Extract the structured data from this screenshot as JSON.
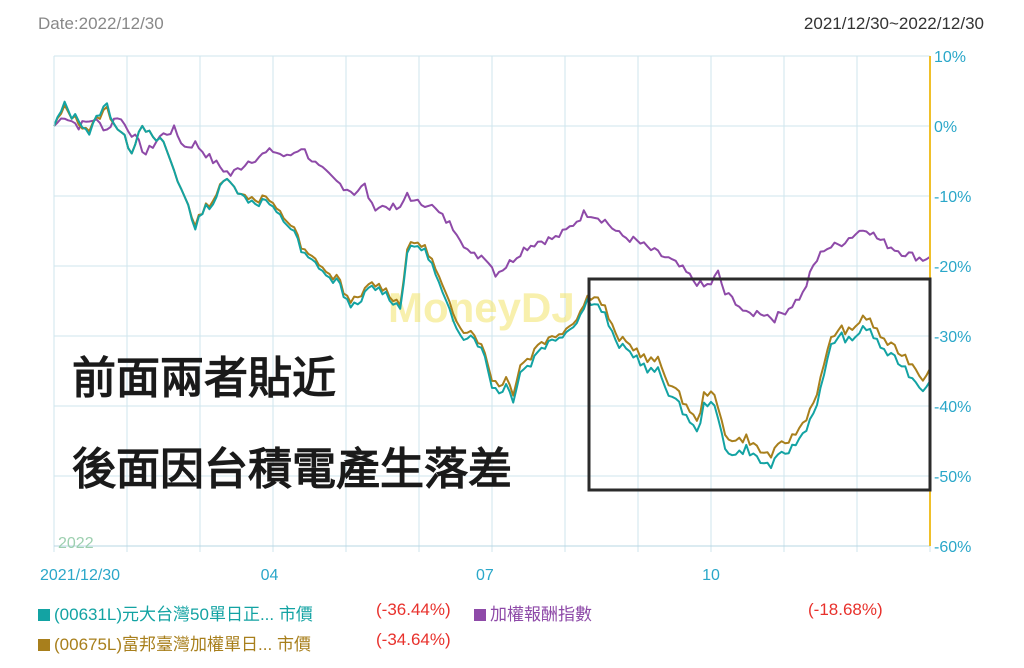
{
  "header": {
    "date_label": "Date:2022/12/30",
    "range_label": "2021/12/30~2022/12/30"
  },
  "watermark": "MoneyDJ",
  "annotations": [
    "前面兩者貼近",
    "後面因台積電產生落差"
  ],
  "colors": {
    "series_0631": "#13a3a3",
    "series_0675": "#a87f1c",
    "series_index": "#8e4aa8",
    "axis_right": "#f0c02a",
    "grid": "#cfe5ee",
    "negative": "#e8312c"
  },
  "legend": [
    {
      "label": "(00631L)元大台灣50單日正... 市價",
      "pct": "(-36.44%)",
      "pct_color": "#e8312c",
      "text_color": "#13a3a3",
      "swatch": "#13a3a3"
    },
    {
      "label": "加權報酬指數",
      "pct": "(-18.68%)",
      "pct_color": "#e8312c",
      "text_color": "#8e4aa8",
      "swatch": "#8e4aa8"
    },
    {
      "label": "(00675L)富邦臺灣加權單日... 市價",
      "pct": "(-34.64%)",
      "pct_color": "#e8312c",
      "text_color": "#a87f1c",
      "swatch": "#a87f1c"
    }
  ],
  "chart_data": {
    "type": "line",
    "x_ticks": [
      "2021/12/30",
      "04",
      "07",
      "10"
    ],
    "x_ticks_index": [
      0,
      61,
      122,
      186
    ],
    "year_label": "2022",
    "y_ticks": [
      "10%",
      "0%",
      "-10%",
      "-20%",
      "-30%",
      "-40%",
      "-50%",
      "-60%"
    ],
    "ylim": [
      -60,
      10
    ],
    "n_points": 249,
    "highlight_box": {
      "from_index": 152,
      "to_index": 248
    },
    "series": [
      {
        "name": "加權報酬指數",
        "keypoints": [
          [
            0,
            0
          ],
          [
            3,
            1.5
          ],
          [
            7,
            0
          ],
          [
            11,
            1
          ],
          [
            15,
            -0.5
          ],
          [
            18,
            1.5
          ],
          [
            22,
            -1
          ],
          [
            26,
            -4
          ],
          [
            30,
            -1.5
          ],
          [
            34,
            -0.5
          ],
          [
            37,
            -3
          ],
          [
            40,
            -2.5
          ],
          [
            45,
            -5
          ],
          [
            50,
            -7
          ],
          [
            55,
            -5
          ],
          [
            62,
            -3.5
          ],
          [
            66,
            -4.5
          ],
          [
            70,
            -3
          ],
          [
            75,
            -6
          ],
          [
            80,
            -8
          ],
          [
            85,
            -9.5
          ],
          [
            88,
            -8.5
          ],
          [
            90,
            -11.5
          ],
          [
            95,
            -11.5
          ],
          [
            98,
            -12
          ],
          [
            100,
            -9.5
          ],
          [
            102,
            -11
          ],
          [
            106,
            -11
          ],
          [
            110,
            -13
          ],
          [
            114,
            -15
          ],
          [
            118,
            -18.5
          ],
          [
            122,
            -18.5
          ],
          [
            125,
            -21
          ],
          [
            128,
            -20
          ],
          [
            133,
            -17.5
          ],
          [
            137,
            -16.5
          ],
          [
            142,
            -16
          ],
          [
            145,
            -15
          ],
          [
            150,
            -12.5
          ],
          [
            152,
            -12.5
          ],
          [
            156,
            -13.5
          ],
          [
            160,
            -15.5
          ],
          [
            165,
            -16.5
          ],
          [
            170,
            -18
          ],
          [
            174,
            -19
          ],
          [
            178,
            -20.5
          ],
          [
            181,
            -22
          ],
          [
            184,
            -23
          ],
          [
            186,
            -22.5
          ],
          [
            188,
            -21
          ],
          [
            190,
            -24
          ],
          [
            193,
            -25
          ],
          [
            196,
            -27
          ],
          [
            200,
            -26.5
          ],
          [
            204,
            -27.5
          ],
          [
            208,
            -26
          ],
          [
            212,
            -24
          ],
          [
            215,
            -20
          ],
          [
            218,
            -17.5
          ],
          [
            222,
            -17
          ],
          [
            225,
            -16
          ],
          [
            228,
            -15
          ],
          [
            230,
            -14.5
          ],
          [
            233,
            -16
          ],
          [
            236,
            -17
          ],
          [
            240,
            -18
          ],
          [
            243,
            -18.5
          ],
          [
            246,
            -19
          ],
          [
            248,
            -18.68
          ]
        ]
      },
      {
        "name": "(00631L)元大台灣50單日正... 市價",
        "keypoints": [
          [
            0,
            0
          ],
          [
            3,
            3
          ],
          [
            5,
            1.5
          ],
          [
            7,
            1
          ],
          [
            10,
            -1
          ],
          [
            13,
            2
          ],
          [
            15,
            3
          ],
          [
            17,
            0.5
          ],
          [
            19,
            -1
          ],
          [
            22,
            -3.5
          ],
          [
            25,
            0.5
          ],
          [
            28,
            -2
          ],
          [
            30,
            -2
          ],
          [
            32,
            -3.5
          ],
          [
            35,
            -8
          ],
          [
            38,
            -11
          ],
          [
            40,
            -15
          ],
          [
            42,
            -12
          ],
          [
            45,
            -11
          ],
          [
            48,
            -8
          ],
          [
            50,
            -7.5
          ],
          [
            53,
            -10
          ],
          [
            55,
            -10.5
          ],
          [
            58,
            -11
          ],
          [
            60,
            -10.5
          ],
          [
            62,
            -12
          ],
          [
            64,
            -13
          ],
          [
            68,
            -15
          ],
          [
            70,
            -18
          ],
          [
            72,
            -19
          ],
          [
            75,
            -20
          ],
          [
            78,
            -22
          ],
          [
            80,
            -22
          ],
          [
            83,
            -25
          ],
          [
            86,
            -26
          ],
          [
            88,
            -24
          ],
          [
            90,
            -23
          ],
          [
            93,
            -23.5
          ],
          [
            96,
            -25
          ],
          [
            98,
            -26
          ],
          [
            100,
            -18
          ],
          [
            103,
            -17
          ],
          [
            106,
            -18.5
          ],
          [
            110,
            -24
          ],
          [
            113,
            -28
          ],
          [
            116,
            -30
          ],
          [
            119,
            -30
          ],
          [
            122,
            -33
          ],
          [
            124,
            -37
          ],
          [
            126,
            -38
          ],
          [
            128,
            -37
          ],
          [
            130,
            -39
          ],
          [
            132,
            -35
          ],
          [
            135,
            -34
          ],
          [
            137,
            -32
          ],
          [
            140,
            -31
          ],
          [
            143,
            -30
          ],
          [
            146,
            -29
          ],
          [
            149,
            -27
          ],
          [
            151,
            -25
          ],
          [
            153,
            -25
          ],
          [
            156,
            -27
          ],
          [
            159,
            -31
          ],
          [
            162,
            -32
          ],
          [
            165,
            -33
          ],
          [
            168,
            -35
          ],
          [
            171,
            -35
          ],
          [
            174,
            -38
          ],
          [
            177,
            -40
          ],
          [
            180,
            -42
          ],
          [
            182,
            -44
          ],
          [
            184,
            -40
          ],
          [
            186,
            -39
          ],
          [
            188,
            -42
          ],
          [
            190,
            -46
          ],
          [
            193,
            -47
          ],
          [
            196,
            -46
          ],
          [
            200,
            -48
          ],
          [
            203,
            -48.5
          ],
          [
            206,
            -47
          ],
          [
            209,
            -46
          ],
          [
            212,
            -44
          ],
          [
            215,
            -41
          ],
          [
            218,
            -36
          ],
          [
            220,
            -31
          ],
          [
            223,
            -30
          ],
          [
            226,
            -31
          ],
          [
            229,
            -28.5
          ],
          [
            232,
            -30
          ],
          [
            234,
            -31.5
          ],
          [
            237,
            -33
          ],
          [
            240,
            -34
          ],
          [
            243,
            -36
          ],
          [
            246,
            -37.5
          ],
          [
            248,
            -36.44
          ]
        ]
      },
      {
        "name": "(00675L)富邦臺灣加權單日... 市價",
        "keypoints": [
          [
            0,
            0
          ],
          [
            3,
            2.5
          ],
          [
            5,
            1.5
          ],
          [
            7,
            0.5
          ],
          [
            10,
            -0.5
          ],
          [
            13,
            1.5
          ],
          [
            15,
            2.5
          ],
          [
            17,
            0.5
          ],
          [
            19,
            -1
          ],
          [
            22,
            -3.5
          ],
          [
            25,
            0.5
          ],
          [
            28,
            -2
          ],
          [
            30,
            -2
          ],
          [
            32,
            -3.5
          ],
          [
            35,
            -8
          ],
          [
            38,
            -11
          ],
          [
            40,
            -14.5
          ],
          [
            42,
            -12
          ],
          [
            45,
            -10.5
          ],
          [
            48,
            -8
          ],
          [
            50,
            -7.5
          ],
          [
            53,
            -10
          ],
          [
            55,
            -10
          ],
          [
            58,
            -10.5
          ],
          [
            60,
            -10
          ],
          [
            62,
            -11.5
          ],
          [
            64,
            -12.5
          ],
          [
            68,
            -14.5
          ],
          [
            70,
            -17.5
          ],
          [
            72,
            -18.5
          ],
          [
            75,
            -19.5
          ],
          [
            78,
            -21.5
          ],
          [
            80,
            -21.5
          ],
          [
            83,
            -24.5
          ],
          [
            86,
            -25
          ],
          [
            88,
            -23.5
          ],
          [
            90,
            -22.5
          ],
          [
            93,
            -23
          ],
          [
            96,
            -24.5
          ],
          [
            98,
            -25.5
          ],
          [
            100,
            -17.5
          ],
          [
            103,
            -16.5
          ],
          [
            106,
            -18
          ],
          [
            110,
            -23
          ],
          [
            113,
            -27
          ],
          [
            116,
            -29
          ],
          [
            119,
            -29.5
          ],
          [
            122,
            -32.5
          ],
          [
            124,
            -36
          ],
          [
            126,
            -37
          ],
          [
            128,
            -36
          ],
          [
            130,
            -38
          ],
          [
            132,
            -34
          ],
          [
            135,
            -33
          ],
          [
            137,
            -31
          ],
          [
            140,
            -30.5
          ],
          [
            143,
            -29.5
          ],
          [
            146,
            -28.5
          ],
          [
            149,
            -26.5
          ],
          [
            151,
            -24.5
          ],
          [
            153,
            -24
          ],
          [
            156,
            -26
          ],
          [
            159,
            -30
          ],
          [
            162,
            -31
          ],
          [
            165,
            -32
          ],
          [
            168,
            -33.5
          ],
          [
            171,
            -33.5
          ],
          [
            174,
            -36.5
          ],
          [
            177,
            -38.5
          ],
          [
            180,
            -40.5
          ],
          [
            182,
            -42.5
          ],
          [
            184,
            -38.5
          ],
          [
            186,
            -37.5
          ],
          [
            188,
            -40.5
          ],
          [
            190,
            -44
          ],
          [
            193,
            -45
          ],
          [
            196,
            -44.5
          ],
          [
            200,
            -46.5
          ],
          [
            203,
            -47
          ],
          [
            206,
            -45.5
          ],
          [
            209,
            -44.5
          ],
          [
            212,
            -42.5
          ],
          [
            215,
            -39.5
          ],
          [
            218,
            -34.5
          ],
          [
            220,
            -30
          ],
          [
            223,
            -29
          ],
          [
            226,
            -29.5
          ],
          [
            229,
            -27
          ],
          [
            232,
            -28.5
          ],
          [
            234,
            -30
          ],
          [
            237,
            -31.5
          ],
          [
            240,
            -32.5
          ],
          [
            243,
            -34
          ],
          [
            246,
            -36
          ],
          [
            248,
            -34.64
          ]
        ]
      }
    ]
  }
}
